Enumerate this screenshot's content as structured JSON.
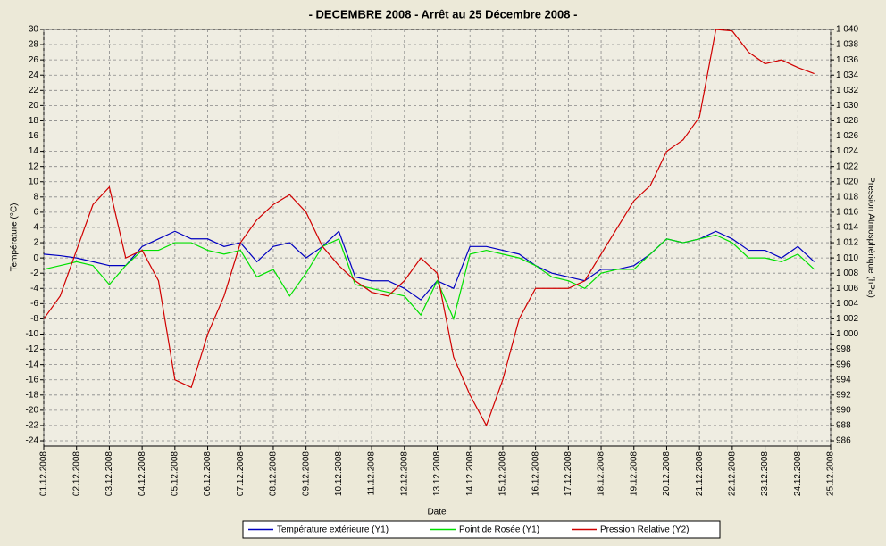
{
  "chart_data": {
    "type": "line",
    "title": "-  DECEMBRE  2008  -  Arrêt au 25 Décembre 2008  -",
    "x_label": "Date",
    "y_label": "Température (°C)",
    "y2_label": "Pression Atmosphérique (hPa)",
    "grid": true,
    "legend": "bottom",
    "x": [
      0,
      0.5,
      1,
      1.5,
      2,
      2.5,
      3,
      3.5,
      4,
      4.5,
      5,
      5.5,
      6,
      6.5,
      7,
      7.5,
      8,
      8.5,
      9,
      9.5,
      10,
      10.5,
      11,
      11.5,
      12,
      12.5,
      13,
      13.5,
      14,
      14.5,
      15,
      15.5,
      16,
      16.5,
      17,
      17.5,
      18,
      18.5,
      19,
      19.5,
      20,
      20.5,
      21,
      21.5,
      22,
      22.5,
      23,
      23.5
    ],
    "xlim": [
      0,
      24
    ],
    "xticks": [
      {
        "value": 0,
        "label": "01.12.2008"
      },
      {
        "value": 1,
        "label": "02.12.2008"
      },
      {
        "value": 2,
        "label": "03.12.2008"
      },
      {
        "value": 3,
        "label": "04.12.2008"
      },
      {
        "value": 4,
        "label": "05.12.2008"
      },
      {
        "value": 5,
        "label": "06.12.2008"
      },
      {
        "value": 6,
        "label": "07.12.2008"
      },
      {
        "value": 7,
        "label": "08.12.2008"
      },
      {
        "value": 8,
        "label": "09.12.2008"
      },
      {
        "value": 9,
        "label": "10.12.2008"
      },
      {
        "value": 10,
        "label": "11.12.2008"
      },
      {
        "value": 11,
        "label": "12.12.2008"
      },
      {
        "value": 12,
        "label": "13.12.2008"
      },
      {
        "value": 13,
        "label": "14.12.2008"
      },
      {
        "value": 14,
        "label": "15.12.2008"
      },
      {
        "value": 15,
        "label": "16.12.2008"
      },
      {
        "value": 16,
        "label": "17.12.2008"
      },
      {
        "value": 17,
        "label": "18.12.2008"
      },
      {
        "value": 18,
        "label": "19.12.2008"
      },
      {
        "value": 19,
        "label": "20.12.2008"
      },
      {
        "value": 20,
        "label": "21.12.2008"
      },
      {
        "value": 21,
        "label": "22.12.2008"
      },
      {
        "value": 22,
        "label": "23.12.2008"
      },
      {
        "value": 23,
        "label": "24.12.2008"
      },
      {
        "value": 24,
        "label": "25.12.2008"
      }
    ],
    "ylim": [
      -24.7,
      30
    ],
    "yticks": [
      -24,
      -22,
      -20,
      -18,
      -16,
      -14,
      -12,
      -10,
      -8,
      -6,
      -4,
      -2,
      0,
      2,
      4,
      6,
      8,
      10,
      12,
      14,
      16,
      18,
      20,
      22,
      24,
      26,
      28,
      30
    ],
    "y2lim": [
      985.3,
      1040
    ],
    "y2ticks": [
      986,
      988,
      990,
      992,
      994,
      996,
      998,
      {
        "value": 1000,
        "label": "1 000"
      },
      {
        "value": 1002,
        "label": "1 002"
      },
      {
        "value": 1004,
        "label": "1 004"
      },
      {
        "value": 1006,
        "label": "1 006"
      },
      {
        "value": 1008,
        "label": "1 008"
      },
      {
        "value": 1010,
        "label": "1 010"
      },
      {
        "value": 1012,
        "label": "1 012"
      },
      {
        "value": 1014,
        "label": "1 014"
      },
      {
        "value": 1016,
        "label": "1 016"
      },
      {
        "value": 1018,
        "label": "1 018"
      },
      {
        "value": 1020,
        "label": "1 020"
      },
      {
        "value": 1022,
        "label": "1 022"
      },
      {
        "value": 1024,
        "label": "1 024"
      },
      {
        "value": 1026,
        "label": "1 026"
      },
      {
        "value": 1028,
        "label": "1 028"
      },
      {
        "value": 1030,
        "label": "1 030"
      },
      {
        "value": 1032,
        "label": "1 032"
      },
      {
        "value": 1034,
        "label": "1 034"
      },
      {
        "value": 1036,
        "label": "1 036"
      },
      {
        "value": 1038,
        "label": "1 038"
      },
      {
        "value": 1040,
        "label": "1 040"
      }
    ],
    "series": [
      {
        "name": "Température extérieure (Y1)",
        "color": "#0000c0",
        "values": [
          0.5,
          0.3,
          0,
          -0.5,
          -1,
          -1,
          1.5,
          2.5,
          3.5,
          2.5,
          2.5,
          1.5,
          2,
          -0.5,
          1.5,
          2,
          0,
          1.5,
          3.5,
          -2.5,
          -3,
          -3,
          -4,
          -5.5,
          -3,
          -4,
          1.5,
          1.5,
          1,
          0.5,
          -1,
          -2,
          -2.5,
          -3,
          -1.5,
          -1.5,
          -1,
          0.5,
          2.5,
          2,
          2.5,
          3.5,
          2.5,
          1,
          1,
          0,
          1.5,
          -0.5
        ]
      },
      {
        "name": "Point de Rosée (Y1)",
        "color": "#00e000",
        "values": [
          -1.5,
          -1,
          -0.5,
          -1,
          -3.5,
          -1,
          1,
          1,
          2,
          2,
          1,
          0.5,
          1,
          -2.5,
          -1.5,
          -5,
          -2,
          1.5,
          2.5,
          -3.5,
          -4,
          -4.5,
          -5,
          -7.5,
          -3,
          -8,
          0.5,
          1,
          0.5,
          0,
          -1,
          -2.5,
          -3,
          -4,
          -2,
          -1.5,
          -1.5,
          0.5,
          2.5,
          2,
          2.5,
          3,
          2,
          0,
          0,
          -0.5,
          0.5,
          -1.5
        ]
      },
      {
        "name": "Pression Relative (Y2)",
        "color": "#d00000",
        "axis": "y2",
        "values": [
          1002,
          1005,
          1011,
          1017,
          1019.3,
          1010,
          1011,
          1007,
          994,
          993,
          1000,
          1005,
          1012,
          1015,
          1017,
          1018.3,
          1016,
          1011.5,
          1009,
          1007,
          1005.5,
          1005,
          1007,
          1010,
          1008,
          997,
          992,
          988,
          994,
          1002,
          1006,
          1006,
          1006,
          1007,
          1010.5,
          1014,
          1017.5,
          1019.5,
          1024,
          1025.5,
          1028.5,
          1040,
          1039.8,
          1037,
          1035.5,
          1036,
          1035,
          1034.2
        ]
      }
    ]
  }
}
